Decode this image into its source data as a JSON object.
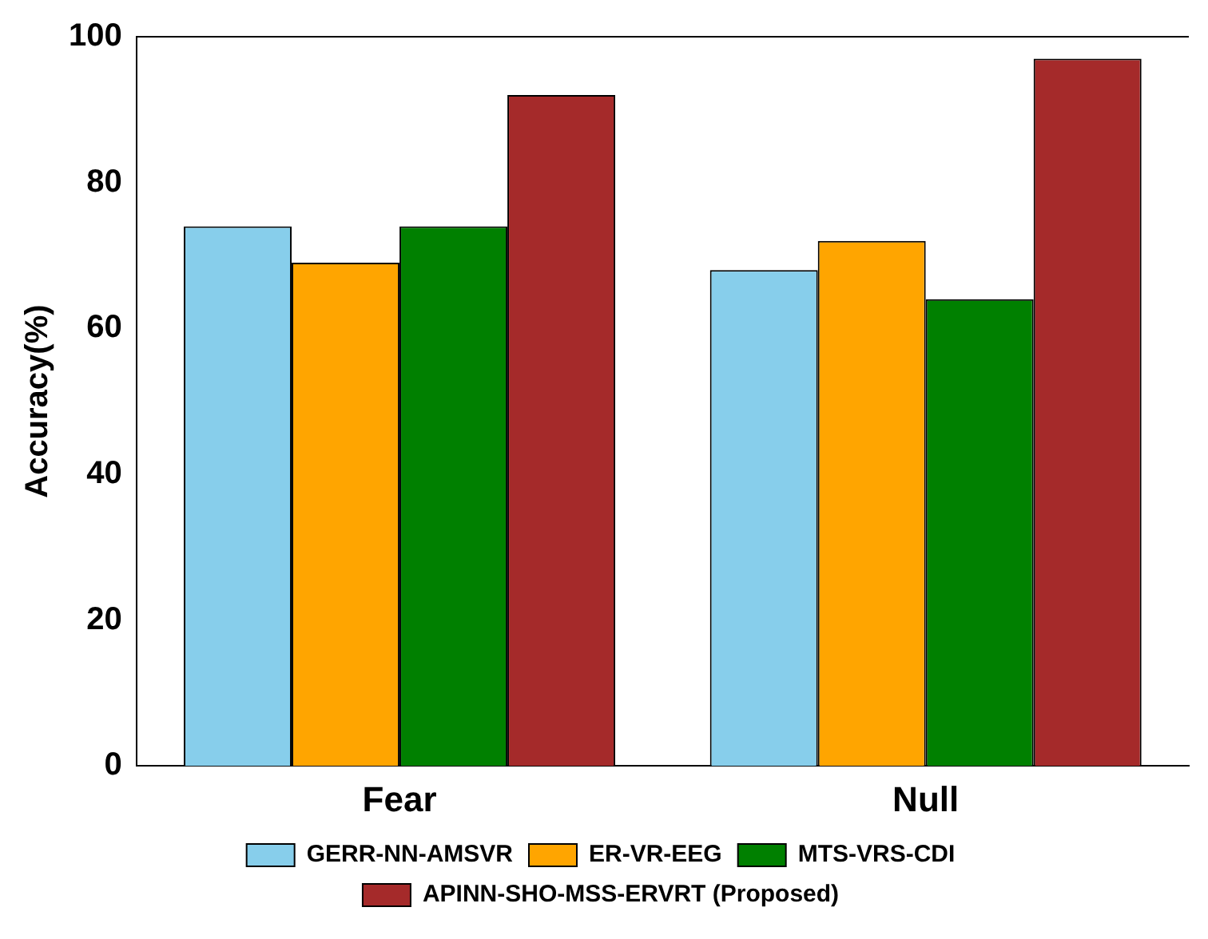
{
  "chart_data": {
    "type": "bar",
    "ylabel": "Accuracy(%)",
    "categories": [
      "Fear",
      "Null"
    ],
    "series": [
      {
        "name": "GERR-NN-AMSVR",
        "color": "#87ceeb",
        "values": [
          74,
          68
        ]
      },
      {
        "name": "ER-VR-EEG",
        "color": "#ffa500",
        "values": [
          69,
          72
        ]
      },
      {
        "name": "MTS-VRS-CDI",
        "color": "#008000",
        "values": [
          74,
          64
        ]
      },
      {
        "name": "APINN-SHO-MSS-ERVRT (Proposed)",
        "color": "#a52a2a",
        "values": [
          92,
          97
        ]
      }
    ],
    "ylim": [
      0,
      100
    ],
    "yticks": [
      0,
      20,
      40,
      60,
      80,
      100
    ],
    "grid": false,
    "legend": "bottom"
  }
}
